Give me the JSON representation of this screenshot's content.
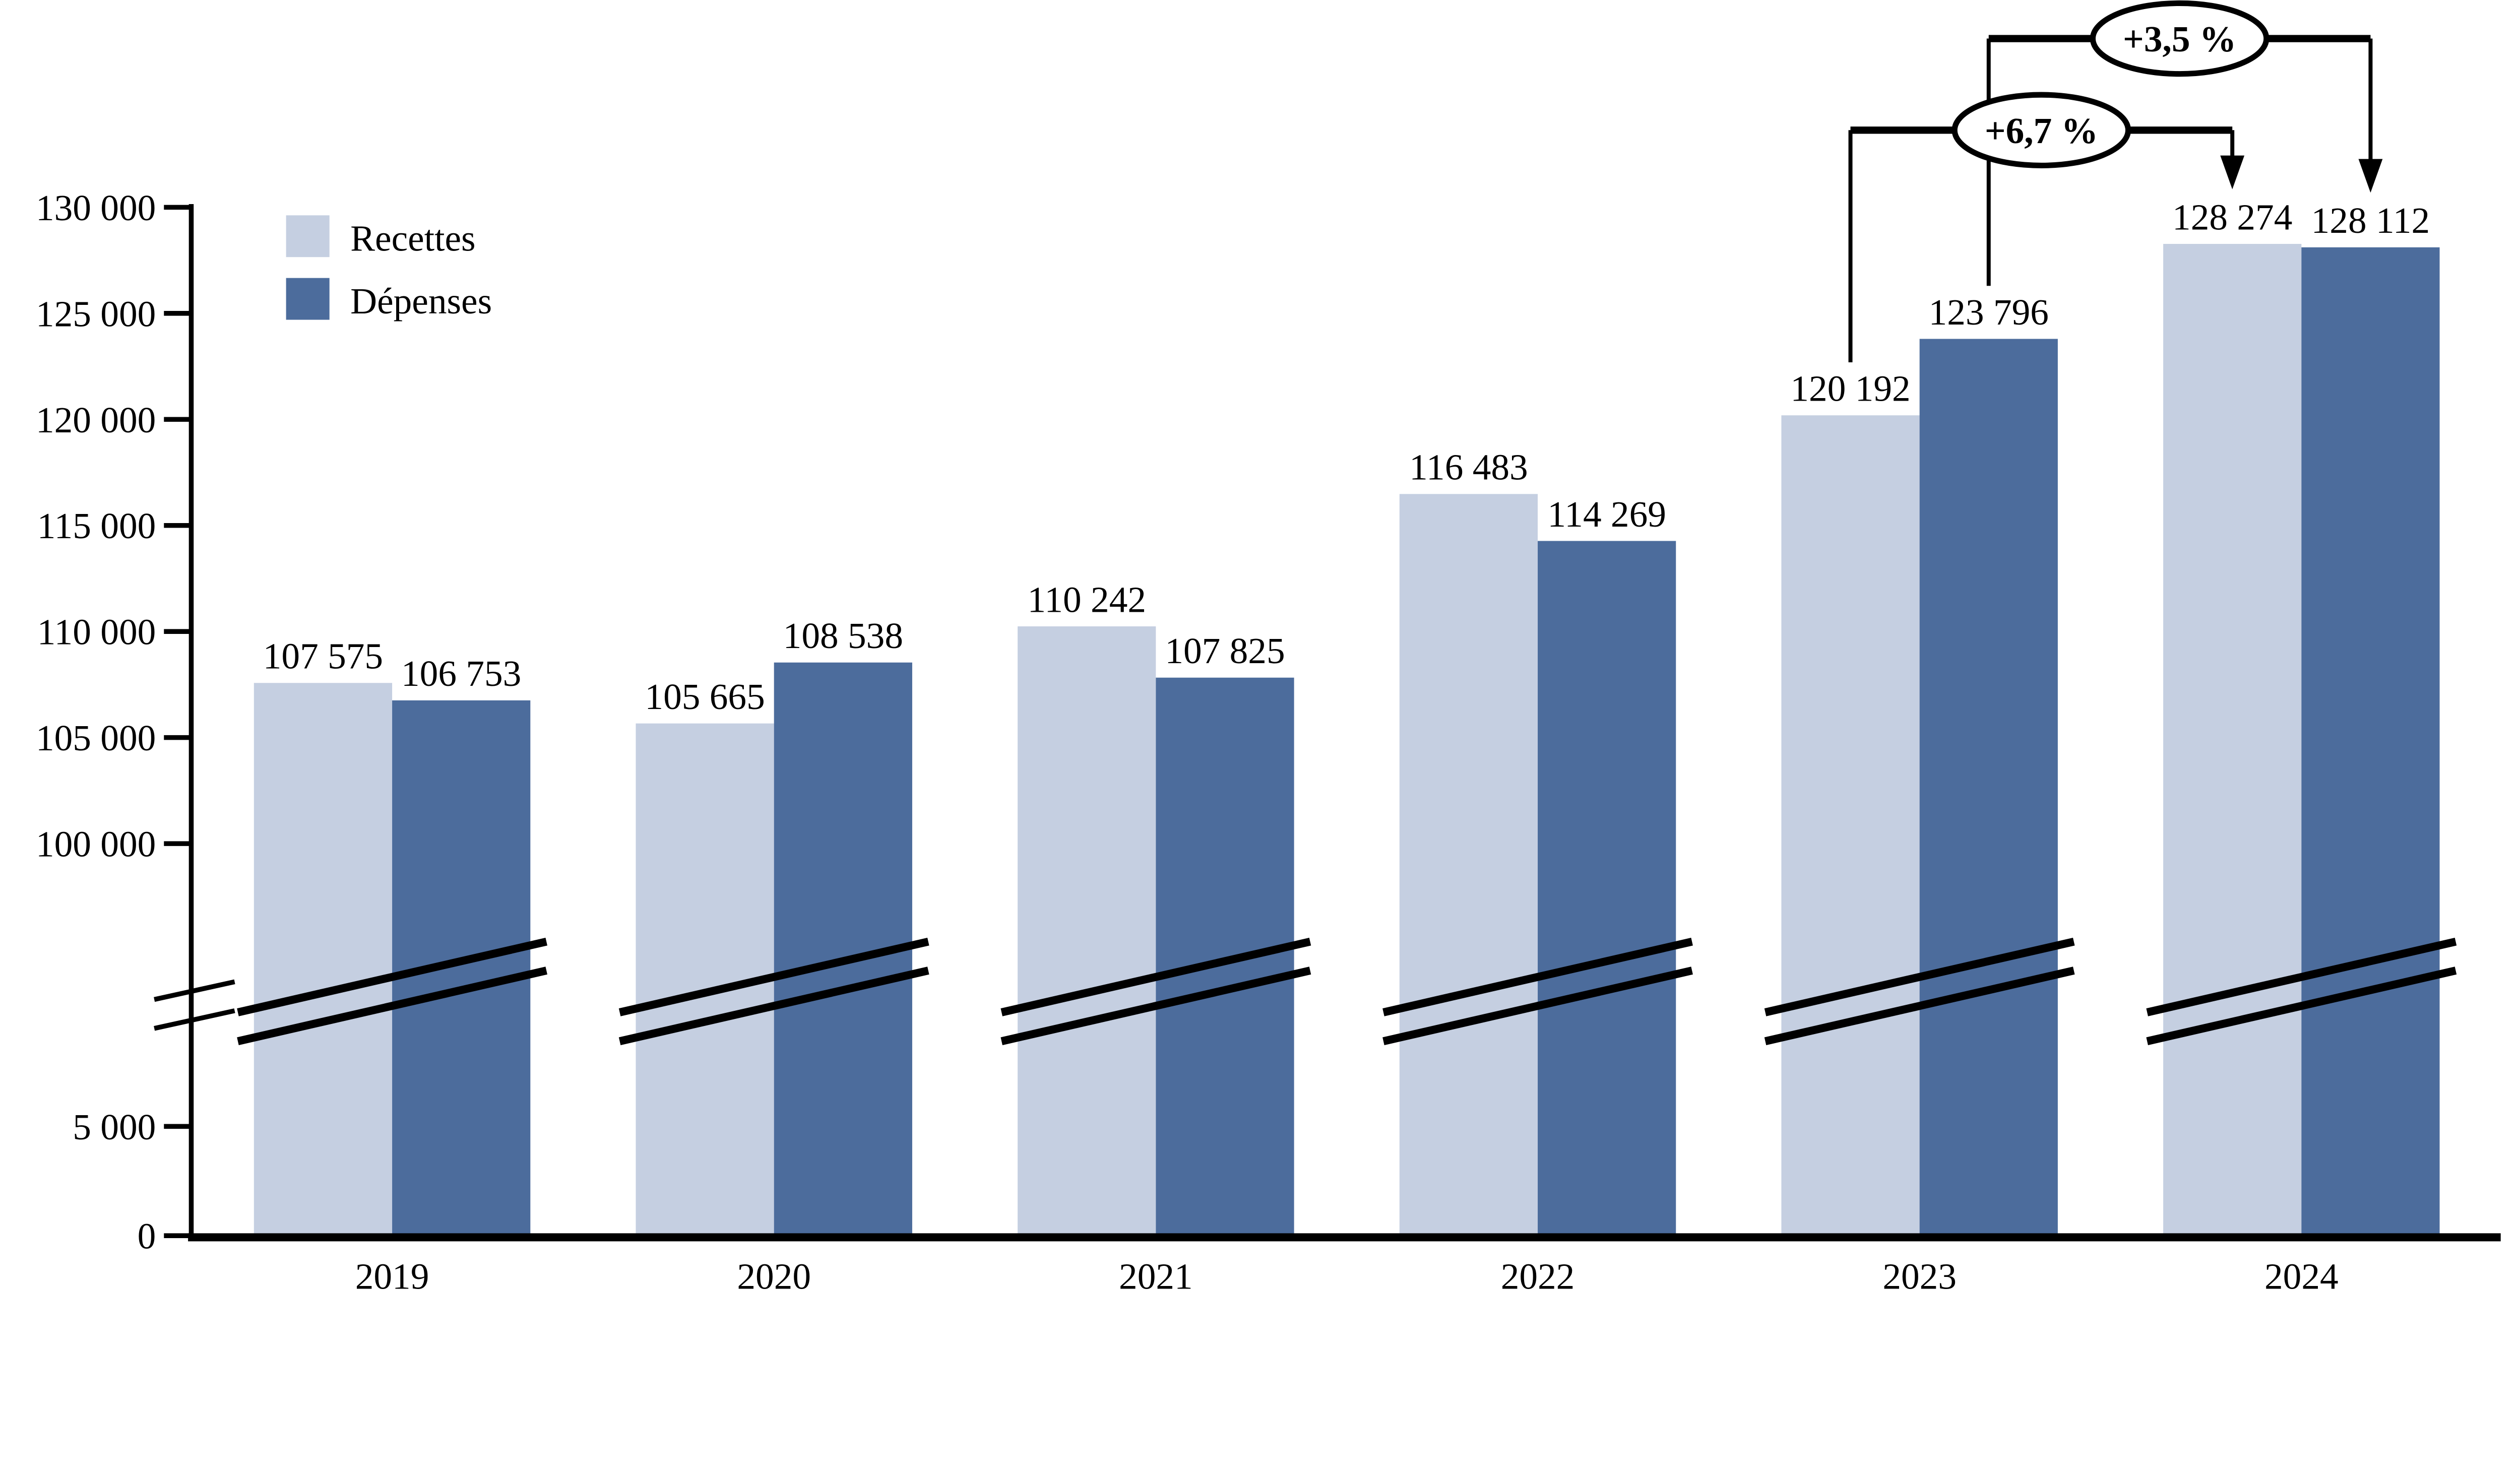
{
  "page": {
    "background_color": "#ffffff",
    "text_color": "#000000"
  },
  "legend": {
    "items": [
      {
        "label": "Recettes",
        "color": "#c5cfe1"
      },
      {
        "label": "Dépenses",
        "color": "#4c6c9c"
      }
    ]
  },
  "chart_data": {
    "type": "bar",
    "title": "",
    "xlabel": "",
    "ylabel": "",
    "categories": [
      "2019",
      "2020",
      "2021",
      "2022",
      "2023",
      "2024"
    ],
    "series": [
      {
        "name": "Recettes",
        "color": "#c5cfe1",
        "values": [
          107575,
          105665,
          110242,
          116483,
          120192,
          128274
        ],
        "value_labels": [
          "107 575",
          "105 665",
          "110 242",
          "116 483",
          "120 192",
          "128 274"
        ]
      },
      {
        "name": "Dépenses",
        "color": "#4c6c9c",
        "values": [
          106753,
          108538,
          107825,
          114269,
          123796,
          128112
        ],
        "value_labels": [
          "106 753",
          "108 538",
          "107 825",
          "114 269",
          "123 796",
          "128 112"
        ]
      }
    ],
    "y_axis": {
      "broken": true,
      "break_between": [
        5000,
        100000
      ],
      "ticks": [
        {
          "value": 0,
          "label": "0"
        },
        {
          "value": 5000,
          "label": "5 000"
        },
        {
          "value": 100000,
          "label": "100 000"
        },
        {
          "value": 105000,
          "label": "105 000"
        },
        {
          "value": 110000,
          "label": "110 000"
        },
        {
          "value": 115000,
          "label": "115 000"
        },
        {
          "value": 120000,
          "label": "120 000"
        },
        {
          "value": 125000,
          "label": "125 000"
        },
        {
          "value": 130000,
          "label": "130 000"
        }
      ]
    },
    "annotations": [
      {
        "label": "+3,5 %",
        "series": "Dépenses",
        "from_category": "2023",
        "to_category": "2024"
      },
      {
        "label": "+6,7 %",
        "series": "Recettes",
        "from_category": "2023",
        "to_category": "2024"
      }
    ],
    "legend_position": "top-left",
    "grid": false
  }
}
